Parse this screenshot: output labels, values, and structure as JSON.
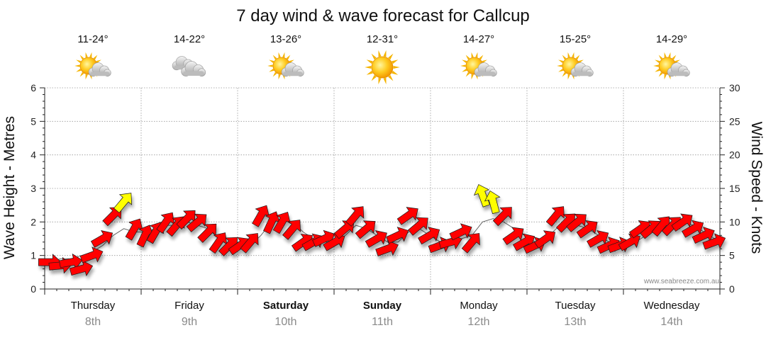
{
  "chart_data": {
    "type": "line",
    "title": "7 day wind & wave forecast for Callcup",
    "ylabel_left": "Wave Height - Metres",
    "ylabel_right": "Wind Speed - Knots",
    "ylim_left": [
      0,
      6
    ],
    "ylim_right": [
      0,
      30
    ],
    "yticks_left": [
      "0",
      "1",
      "2",
      "3",
      "4",
      "5",
      "6"
    ],
    "yticks_right": [
      "0",
      "5",
      "10",
      "15",
      "20",
      "25",
      "30"
    ],
    "grid": true,
    "watermark": "www.seabreeze.com.au",
    "days": [
      {
        "name": "Thursday",
        "date": "8th",
        "temp": "11-24°",
        "icon": "partly-cloudy-icon",
        "bold": false
      },
      {
        "name": "Friday",
        "date": "9th",
        "temp": "14-22°",
        "icon": "cloudy-icon",
        "bold": false
      },
      {
        "name": "Saturday",
        "date": "10th",
        "temp": "13-26°",
        "icon": "partly-cloudy-icon",
        "bold": true
      },
      {
        "name": "Sunday",
        "date": "11th",
        "temp": "12-31°",
        "icon": "sunny-icon",
        "bold": true
      },
      {
        "name": "Monday",
        "date": "12th",
        "temp": "14-27°",
        "icon": "partly-cloudy-icon",
        "bold": false
      },
      {
        "name": "Tuesday",
        "date": "13th",
        "temp": "15-25°",
        "icon": "partly-cloudy-icon",
        "bold": false
      },
      {
        "name": "Wednesday",
        "date": "14th",
        "temp": "14-29°",
        "icon": "partly-cloudy-icon",
        "bold": false
      }
    ],
    "series": [
      {
        "name": "Wind Speed (knots)",
        "note": "3-hourly samples over 7 days; arrow direction = wind direction",
        "values": [
          4,
          3.5,
          4,
          3,
          5,
          7.5,
          11,
          13,
          9,
          8,
          8.5,
          10,
          9.5,
          10.5,
          10,
          8.5,
          7,
          6.5,
          6.5,
          7,
          11,
          10,
          10,
          9,
          7,
          7,
          7.5,
          7,
          9,
          11,
          9,
          7.5,
          6,
          8,
          11,
          9.5,
          8,
          6.5,
          7,
          8.5,
          7,
          14,
          13,
          11,
          8,
          7,
          6.5,
          7.5,
          11,
          10,
          10,
          9,
          7.5,
          6.5,
          6.5,
          7,
          9,
          9,
          9.5,
          9.5,
          10,
          9,
          8,
          7
        ],
        "directions_deg": [
          270,
          265,
          260,
          255,
          250,
          240,
          225,
          220,
          210,
          205,
          210,
          215,
          220,
          225,
          230,
          225,
          215,
          225,
          235,
          220,
          210,
          205,
          210,
          220,
          235,
          240,
          245,
          240,
          230,
          220,
          230,
          240,
          250,
          245,
          235,
          230,
          240,
          250,
          255,
          245,
          220,
          160,
          165,
          225,
          235,
          240,
          245,
          235,
          220,
          225,
          230,
          235,
          240,
          245,
          250,
          240,
          235,
          230,
          220,
          225,
          235,
          240,
          245,
          250
        ],
        "strong_threshold_knots": 12
      },
      {
        "name": "Wave Height (m)",
        "values": [
          0.8,
          0.9,
          0.9,
          1,
          1.1,
          1.3,
          1.6,
          1.8,
          1.7,
          1.7,
          1.8,
          1.9,
          1.9,
          2,
          1.9,
          1.8,
          1.5,
          1.3,
          1.3,
          1.3,
          1.6,
          2,
          2.1,
          2,
          1.7,
          1.5,
          1.4,
          1.4,
          1.6,
          1.9,
          1.8,
          1.6,
          1.4,
          1.4,
          1.7,
          1.8,
          1.6,
          1.4,
          1.4,
          1.5,
          1.6,
          2,
          2.1,
          2,
          1.8,
          1.6,
          1.4,
          1.5,
          1.8,
          1.9,
          1.9,
          1.8,
          1.6,
          1.4,
          1.3,
          1.3,
          1.5,
          1.7,
          1.8,
          1.9,
          2,
          1.9,
          1.7,
          1.5
        ]
      }
    ]
  }
}
